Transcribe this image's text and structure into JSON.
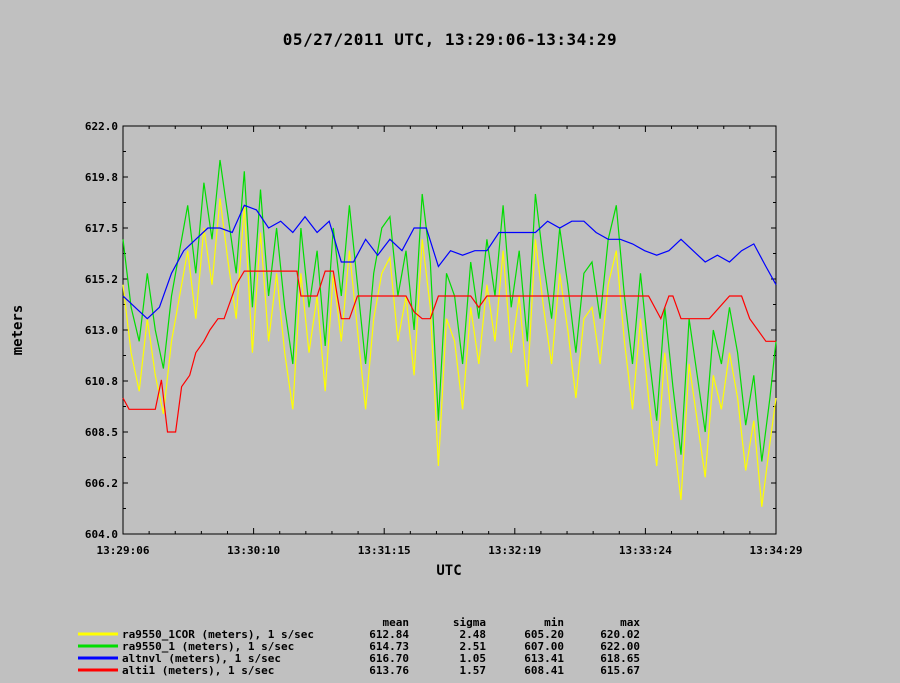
{
  "chart_data": {
    "type": "line",
    "title": "05/27/2011  UTC, 13:29:06-13:34:29",
    "xlabel": "UTC",
    "ylabel": "meters",
    "ylim": [
      604.0,
      622.0
    ],
    "xlim_seconds": [
      0,
      323
    ],
    "y_ticks": [
      "604.0",
      "606.2",
      "608.5",
      "610.8",
      "613.0",
      "615.2",
      "617.5",
      "619.8",
      "622.0"
    ],
    "x_ticks": [
      "13:29:06",
      "13:30:10",
      "13:31:15",
      "13:32:19",
      "13:33:24",
      "13:34:29"
    ],
    "grid": false,
    "stats_headers": [
      "mean",
      "sigma",
      "min",
      "max"
    ],
    "series": [
      {
        "name": "ra9550_1COR (meters), 1 s/sec",
        "color": "#ffff00",
        "stats": [
          "612.84",
          "2.48",
          "605.20",
          "620.02"
        ],
        "x": [
          0,
          4,
          8,
          12,
          16,
          20,
          24,
          28,
          32,
          36,
          40,
          44,
          48,
          52,
          56,
          60,
          64,
          68,
          72,
          76,
          80,
          84,
          88,
          92,
          96,
          100,
          104,
          108,
          112,
          116,
          120,
          124,
          128,
          132,
          136,
          140,
          144,
          148,
          152,
          156,
          160,
          164,
          168,
          172,
          176,
          180,
          184,
          188,
          192,
          196,
          200,
          204,
          208,
          212,
          216,
          220,
          224,
          228,
          232,
          236,
          240,
          244,
          248,
          252,
          256,
          260,
          264,
          268,
          272,
          276,
          280,
          284,
          288,
          292,
          296,
          300,
          304,
          308,
          312,
          316,
          320,
          323
        ],
        "y": [
          615.0,
          612.0,
          610.3,
          613.5,
          611.0,
          609.3,
          612.5,
          614.5,
          616.5,
          613.5,
          617.5,
          615.0,
          618.8,
          616.0,
          613.5,
          618.5,
          612.0,
          617.3,
          612.5,
          615.5,
          612.0,
          609.5,
          615.5,
          612.0,
          614.5,
          610.3,
          615.5,
          612.5,
          616.5,
          613.0,
          609.5,
          613.5,
          615.5,
          616.2,
          612.5,
          614.5,
          611.0,
          617.0,
          614.0,
          607.0,
          613.5,
          612.5,
          609.5,
          614.0,
          611.5,
          615.0,
          612.5,
          616.5,
          612.0,
          614.5,
          610.5,
          617.0,
          614.0,
          611.5,
          615.5,
          613.0,
          610.0,
          613.5,
          614.0,
          611.5,
          615.0,
          616.5,
          612.5,
          609.5,
          613.5,
          610.0,
          607.0,
          612.0,
          608.5,
          605.5,
          611.5,
          609.0,
          606.5,
          611.0,
          609.5,
          612.0,
          610.0,
          606.8,
          609.0,
          605.2,
          608.0,
          610.0
        ]
      },
      {
        "name": "ra9550_1 (meters), 1 s/sec",
        "color": "#00dd00",
        "stats": [
          "614.73",
          "2.51",
          "607.00",
          "622.00"
        ],
        "x": [
          0,
          4,
          8,
          12,
          16,
          20,
          24,
          28,
          32,
          36,
          40,
          44,
          48,
          52,
          56,
          60,
          64,
          68,
          72,
          76,
          80,
          84,
          88,
          92,
          96,
          100,
          104,
          108,
          112,
          116,
          120,
          124,
          128,
          132,
          136,
          140,
          144,
          148,
          152,
          156,
          160,
          164,
          168,
          172,
          176,
          180,
          184,
          188,
          192,
          196,
          200,
          204,
          208,
          212,
          216,
          220,
          224,
          228,
          232,
          236,
          240,
          244,
          248,
          252,
          256,
          260,
          264,
          268,
          272,
          276,
          280,
          284,
          288,
          292,
          296,
          300,
          304,
          308,
          312,
          316,
          320,
          323
        ],
        "y": [
          617.0,
          614.0,
          612.5,
          615.5,
          613.0,
          611.3,
          614.5,
          616.5,
          618.5,
          615.5,
          619.5,
          617.0,
          620.5,
          618.0,
          615.5,
          620.0,
          614.0,
          619.2,
          614.5,
          617.5,
          614.0,
          611.5,
          617.5,
          614.0,
          616.5,
          612.3,
          617.5,
          614.5,
          618.5,
          615.0,
          611.5,
          615.5,
          617.5,
          618.0,
          614.5,
          616.5,
          613.0,
          619.0,
          616.0,
          609.0,
          615.5,
          614.5,
          611.5,
          616.0,
          613.5,
          617.0,
          614.5,
          618.5,
          614.0,
          616.5,
          612.5,
          619.0,
          616.0,
          613.5,
          617.5,
          615.0,
          612.0,
          615.5,
          616.0,
          613.5,
          617.0,
          618.5,
          614.5,
          611.5,
          615.5,
          612.0,
          609.0,
          614.0,
          610.5,
          607.5,
          613.5,
          611.0,
          608.5,
          613.0,
          611.5,
          614.0,
          612.0,
          608.8,
          611.0,
          607.2,
          610.0,
          612.5
        ]
      },
      {
        "name": "altnvl (meters), 1 s/sec",
        "color": "#0000ff",
        "stats": [
          "616.70",
          "1.05",
          "613.41",
          "618.65"
        ],
        "x": [
          0,
          6,
          12,
          18,
          24,
          30,
          36,
          42,
          48,
          54,
          60,
          66,
          72,
          78,
          84,
          90,
          96,
          102,
          108,
          114,
          120,
          126,
          132,
          138,
          144,
          150,
          156,
          162,
          168,
          174,
          180,
          186,
          192,
          198,
          204,
          210,
          216,
          222,
          228,
          234,
          240,
          246,
          252,
          258,
          264,
          270,
          276,
          282,
          288,
          294,
          300,
          306,
          312,
          318,
          323
        ],
        "y": [
          614.5,
          614.0,
          613.5,
          614.0,
          615.5,
          616.5,
          617.0,
          617.5,
          617.5,
          617.3,
          618.5,
          618.3,
          617.5,
          617.8,
          617.3,
          618.0,
          617.3,
          617.8,
          616.0,
          616.0,
          617.0,
          616.3,
          617.0,
          616.5,
          617.5,
          617.5,
          615.8,
          616.5,
          616.3,
          616.5,
          616.5,
          617.3,
          617.3,
          617.3,
          617.3,
          617.8,
          617.5,
          617.8,
          617.8,
          617.3,
          617.0,
          617.0,
          616.8,
          616.5,
          616.3,
          616.5,
          617.0,
          616.5,
          616.0,
          616.3,
          616.0,
          616.5,
          616.8,
          615.8,
          615.0
        ]
      },
      {
        "name": "alti1 (meters), 1 s/sec",
        "color": "#ff0000",
        "stats": [
          "613.76",
          "1.57",
          "608.41",
          "615.67"
        ],
        "x": [
          0,
          3,
          10,
          13,
          16,
          19,
          22,
          26,
          29,
          33,
          36,
          40,
          43,
          47,
          50,
          56,
          60,
          66,
          72,
          80,
          86,
          88,
          90,
          96,
          100,
          104,
          106,
          108,
          112,
          116,
          120,
          124,
          128,
          132,
          136,
          140,
          144,
          148,
          152,
          156,
          160,
          166,
          172,
          176,
          180,
          186,
          192,
          196,
          200,
          210,
          220,
          230,
          240,
          250,
          260,
          266,
          268,
          270,
          272,
          276,
          280,
          290,
          300,
          306,
          310,
          318,
          323
        ],
        "y": [
          610.0,
          609.5,
          609.5,
          609.5,
          609.5,
          610.8,
          608.5,
          608.5,
          610.5,
          611.0,
          612.0,
          612.5,
          613.0,
          613.5,
          613.5,
          615.0,
          615.6,
          615.6,
          615.6,
          615.6,
          615.6,
          614.5,
          614.5,
          614.5,
          615.6,
          615.6,
          614.5,
          613.5,
          613.5,
          614.5,
          614.5,
          614.5,
          614.5,
          614.5,
          614.5,
          614.5,
          613.8,
          613.5,
          613.5,
          614.5,
          614.5,
          614.5,
          614.5,
          614.0,
          614.5,
          614.5,
          614.5,
          614.5,
          614.5,
          614.5,
          614.5,
          614.5,
          614.5,
          614.5,
          614.5,
          613.5,
          614.0,
          614.5,
          614.5,
          613.5,
          613.5,
          613.5,
          614.5,
          614.5,
          613.5,
          612.5,
          612.5
        ]
      }
    ]
  }
}
